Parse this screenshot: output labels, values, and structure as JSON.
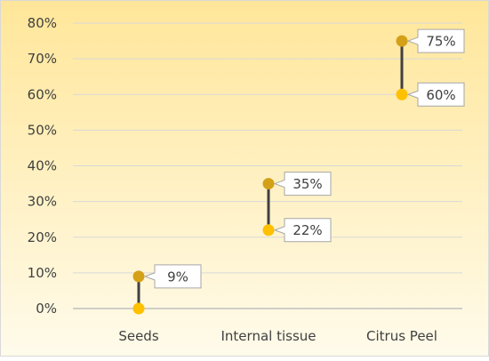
{
  "chart_data": {
    "type": "dumbbell",
    "title": "",
    "xlabel": "",
    "ylabel": "",
    "categories": [
      "Seeds",
      "Internal tissue",
      "Citrus Peel"
    ],
    "series": [
      {
        "values": [
          0,
          22,
          60
        ]
      },
      {
        "values": [
          9,
          35,
          75
        ]
      }
    ],
    "data_labels": [
      "9%",
      "35%",
      "22%",
      "75%",
      "60%"
    ],
    "ylim": [
      0,
      80
    ],
    "yticks": [
      0,
      10,
      20,
      30,
      40,
      50,
      60,
      70,
      80
    ],
    "ytick_labels": [
      "0%",
      "10%",
      "20%",
      "30%",
      "40%",
      "50%",
      "60%",
      "70%",
      "80%"
    ],
    "grid": true,
    "legend": "none",
    "colors": {
      "low_marker": "#FFC000",
      "high_marker": "#D4A017",
      "connector": "#404040",
      "grid": "#D9D9D9",
      "background_top": "#FFE699",
      "background_bottom": "#FFFBEB",
      "label_border": "#A6A6A6",
      "frame": "#D9D9D9"
    }
  }
}
